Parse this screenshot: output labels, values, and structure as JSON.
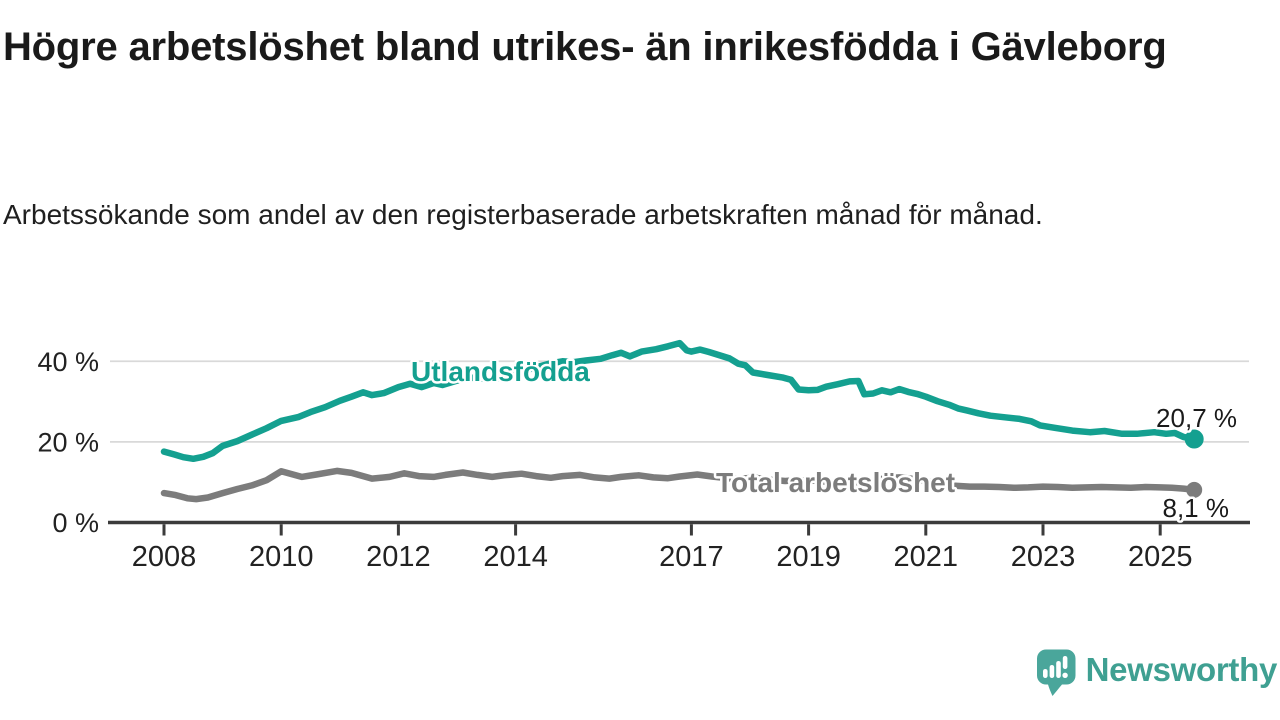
{
  "colors": {
    "series1": "#14a090",
    "series2": "#7c7c7c",
    "grid": "#d9d9d9",
    "axis": "#3b3b3b",
    "tick_text": "#222222",
    "title_text": "#1a1a1a",
    "value_text": "#1a1a1a",
    "logo_icon": "#4aa69b",
    "logo_text": "#3fa092"
  },
  "footer": {
    "brand": "Newsworthy",
    "logo_icon": "newsworthy-speech-bubble-bar-chart-icon"
  },
  "chart_data": {
    "type": "line",
    "title": "Högre arbetslöshet bland utrikes- än inrikesfödda i Gävleborg",
    "subtitle": "Arbetssökande som andel av den registerbaserade arbetskraften månad för månad.",
    "y_unit": "%",
    "grid": "horizontal",
    "legend_position": "inline-labels",
    "x_axis": {
      "range_years": [
        2007.1,
        2026.5
      ],
      "ticks": [
        {
          "value": 2008,
          "label": "2008"
        },
        {
          "value": 2010,
          "label": "2010"
        },
        {
          "value": 2012,
          "label": "2012"
        },
        {
          "value": 2014,
          "label": "2014"
        },
        {
          "value": 2017,
          "label": "2017"
        },
        {
          "value": 2019,
          "label": "2019"
        },
        {
          "value": 2021,
          "label": "2021"
        },
        {
          "value": 2023,
          "label": "2023"
        },
        {
          "value": 2025,
          "label": "2025"
        }
      ]
    },
    "y_axis": {
      "range": [
        0,
        45.5
      ],
      "ticks": [
        {
          "value": 0,
          "label": "0 %"
        },
        {
          "value": 20,
          "label": "20 %"
        },
        {
          "value": 40,
          "label": "40 %"
        }
      ]
    },
    "series": [
      {
        "name": "Utlandsfödda",
        "color": "#14a090",
        "end_value": 20.7,
        "end_label": "20,7 %",
        "points": [
          [
            2008.0,
            17.6
          ],
          [
            2008.17,
            16.9
          ],
          [
            2008.33,
            16.2
          ],
          [
            2008.5,
            15.8
          ],
          [
            2008.67,
            16.3
          ],
          [
            2008.83,
            17.2
          ],
          [
            2009.0,
            19.0
          ],
          [
            2009.25,
            20.2
          ],
          [
            2009.5,
            21.8
          ],
          [
            2009.75,
            23.4
          ],
          [
            2010.0,
            25.2
          ],
          [
            2010.15,
            25.7
          ],
          [
            2010.3,
            26.2
          ],
          [
            2010.5,
            27.4
          ],
          [
            2010.75,
            28.6
          ],
          [
            2011.0,
            30.2
          ],
          [
            2011.2,
            31.2
          ],
          [
            2011.4,
            32.3
          ],
          [
            2011.55,
            31.6
          ],
          [
            2011.75,
            32.1
          ],
          [
            2012.0,
            33.6
          ],
          [
            2012.2,
            34.4
          ],
          [
            2012.4,
            33.6
          ],
          [
            2012.6,
            34.6
          ],
          [
            2012.75,
            34.1
          ],
          [
            2013.0,
            35.2
          ],
          [
            2013.3,
            36.0
          ],
          [
            2013.55,
            35.4
          ],
          [
            2013.75,
            35.8
          ],
          [
            2014.0,
            37.0
          ],
          [
            2014.3,
            38.3
          ],
          [
            2014.6,
            39.5
          ],
          [
            2014.8,
            40.0
          ],
          [
            2015.0,
            39.8
          ],
          [
            2015.2,
            40.2
          ],
          [
            2015.45,
            40.6
          ],
          [
            2015.65,
            41.5
          ],
          [
            2015.8,
            42.1
          ],
          [
            2015.95,
            41.2
          ],
          [
            2016.15,
            42.4
          ],
          [
            2016.4,
            43.0
          ],
          [
            2016.6,
            43.7
          ],
          [
            2016.8,
            44.5
          ],
          [
            2016.92,
            42.7
          ],
          [
            2017.0,
            42.4
          ],
          [
            2017.15,
            42.9
          ],
          [
            2017.3,
            42.3
          ],
          [
            2017.5,
            41.4
          ],
          [
            2017.65,
            40.7
          ],
          [
            2017.8,
            39.4
          ],
          [
            2017.92,
            39.0
          ],
          [
            2018.05,
            37.2
          ],
          [
            2018.3,
            36.6
          ],
          [
            2018.55,
            36.0
          ],
          [
            2018.7,
            35.4
          ],
          [
            2018.83,
            33.0
          ],
          [
            2019.0,
            32.8
          ],
          [
            2019.15,
            32.9
          ],
          [
            2019.3,
            33.7
          ],
          [
            2019.5,
            34.3
          ],
          [
            2019.7,
            35.0
          ],
          [
            2019.85,
            35.1
          ],
          [
            2019.95,
            31.8
          ],
          [
            2020.1,
            32.0
          ],
          [
            2020.25,
            32.8
          ],
          [
            2020.4,
            32.3
          ],
          [
            2020.55,
            33.1
          ],
          [
            2020.7,
            32.4
          ],
          [
            2020.85,
            31.9
          ],
          [
            2021.0,
            31.2
          ],
          [
            2021.2,
            30.1
          ],
          [
            2021.4,
            29.2
          ],
          [
            2021.55,
            28.3
          ],
          [
            2021.7,
            27.8
          ],
          [
            2021.9,
            27.1
          ],
          [
            2022.1,
            26.5
          ],
          [
            2022.35,
            26.1
          ],
          [
            2022.6,
            25.7
          ],
          [
            2022.8,
            25.1
          ],
          [
            2022.95,
            24.1
          ],
          [
            2023.2,
            23.5
          ],
          [
            2023.5,
            22.8
          ],
          [
            2023.8,
            22.4
          ],
          [
            2024.05,
            22.7
          ],
          [
            2024.35,
            22.0
          ],
          [
            2024.6,
            22.0
          ],
          [
            2024.9,
            22.4
          ],
          [
            2025.1,
            22.0
          ],
          [
            2025.25,
            22.2
          ],
          [
            2025.4,
            21.2
          ],
          [
            2025.58,
            20.7
          ]
        ]
      },
      {
        "name": "Total arbetslöshet",
        "color": "#7c7c7c",
        "end_value": 8.1,
        "end_label": "8,1 %",
        "points": [
          [
            2008.0,
            7.3
          ],
          [
            2008.2,
            6.8
          ],
          [
            2008.4,
            6.0
          ],
          [
            2008.55,
            5.8
          ],
          [
            2008.75,
            6.2
          ],
          [
            2009.0,
            7.3
          ],
          [
            2009.25,
            8.3
          ],
          [
            2009.5,
            9.2
          ],
          [
            2009.75,
            10.5
          ],
          [
            2010.0,
            12.7
          ],
          [
            2010.35,
            11.3
          ],
          [
            2010.6,
            11.9
          ],
          [
            2010.95,
            12.8
          ],
          [
            2011.2,
            12.3
          ],
          [
            2011.55,
            10.9
          ],
          [
            2011.85,
            11.3
          ],
          [
            2012.1,
            12.2
          ],
          [
            2012.35,
            11.5
          ],
          [
            2012.6,
            11.3
          ],
          [
            2012.8,
            11.8
          ],
          [
            2013.1,
            12.4
          ],
          [
            2013.35,
            11.8
          ],
          [
            2013.6,
            11.3
          ],
          [
            2013.8,
            11.7
          ],
          [
            2014.1,
            12.1
          ],
          [
            2014.35,
            11.5
          ],
          [
            2014.6,
            11.1
          ],
          [
            2014.8,
            11.5
          ],
          [
            2015.1,
            11.8
          ],
          [
            2015.35,
            11.2
          ],
          [
            2015.6,
            10.9
          ],
          [
            2015.8,
            11.3
          ],
          [
            2016.1,
            11.7
          ],
          [
            2016.35,
            11.2
          ],
          [
            2016.6,
            11.0
          ],
          [
            2016.8,
            11.4
          ],
          [
            2017.1,
            11.9
          ],
          [
            2017.35,
            11.4
          ],
          [
            2017.6,
            11.0
          ],
          [
            2017.8,
            10.9
          ],
          [
            2018.1,
            11.1
          ],
          [
            2018.35,
            10.6
          ],
          [
            2018.6,
            10.3
          ],
          [
            2018.8,
            10.5
          ],
          [
            2019.1,
            10.4
          ],
          [
            2019.35,
            10.0
          ],
          [
            2019.6,
            9.9
          ],
          [
            2019.8,
            10.0
          ],
          [
            2020.1,
            10.3
          ],
          [
            2020.3,
            11.0
          ],
          [
            2020.55,
            11.2
          ],
          [
            2020.8,
            10.8
          ],
          [
            2021.0,
            10.3
          ],
          [
            2021.25,
            9.6
          ],
          [
            2021.5,
            9.1
          ],
          [
            2021.75,
            8.9
          ],
          [
            2022.0,
            8.9
          ],
          [
            2022.25,
            8.8
          ],
          [
            2022.5,
            8.6
          ],
          [
            2022.75,
            8.7
          ],
          [
            2023.0,
            8.9
          ],
          [
            2023.25,
            8.8
          ],
          [
            2023.5,
            8.6
          ],
          [
            2023.75,
            8.7
          ],
          [
            2024.0,
            8.8
          ],
          [
            2024.25,
            8.7
          ],
          [
            2024.5,
            8.6
          ],
          [
            2024.75,
            8.8
          ],
          [
            2025.0,
            8.7
          ],
          [
            2025.2,
            8.6
          ],
          [
            2025.4,
            8.4
          ],
          [
            2025.58,
            8.1
          ]
        ]
      }
    ]
  }
}
